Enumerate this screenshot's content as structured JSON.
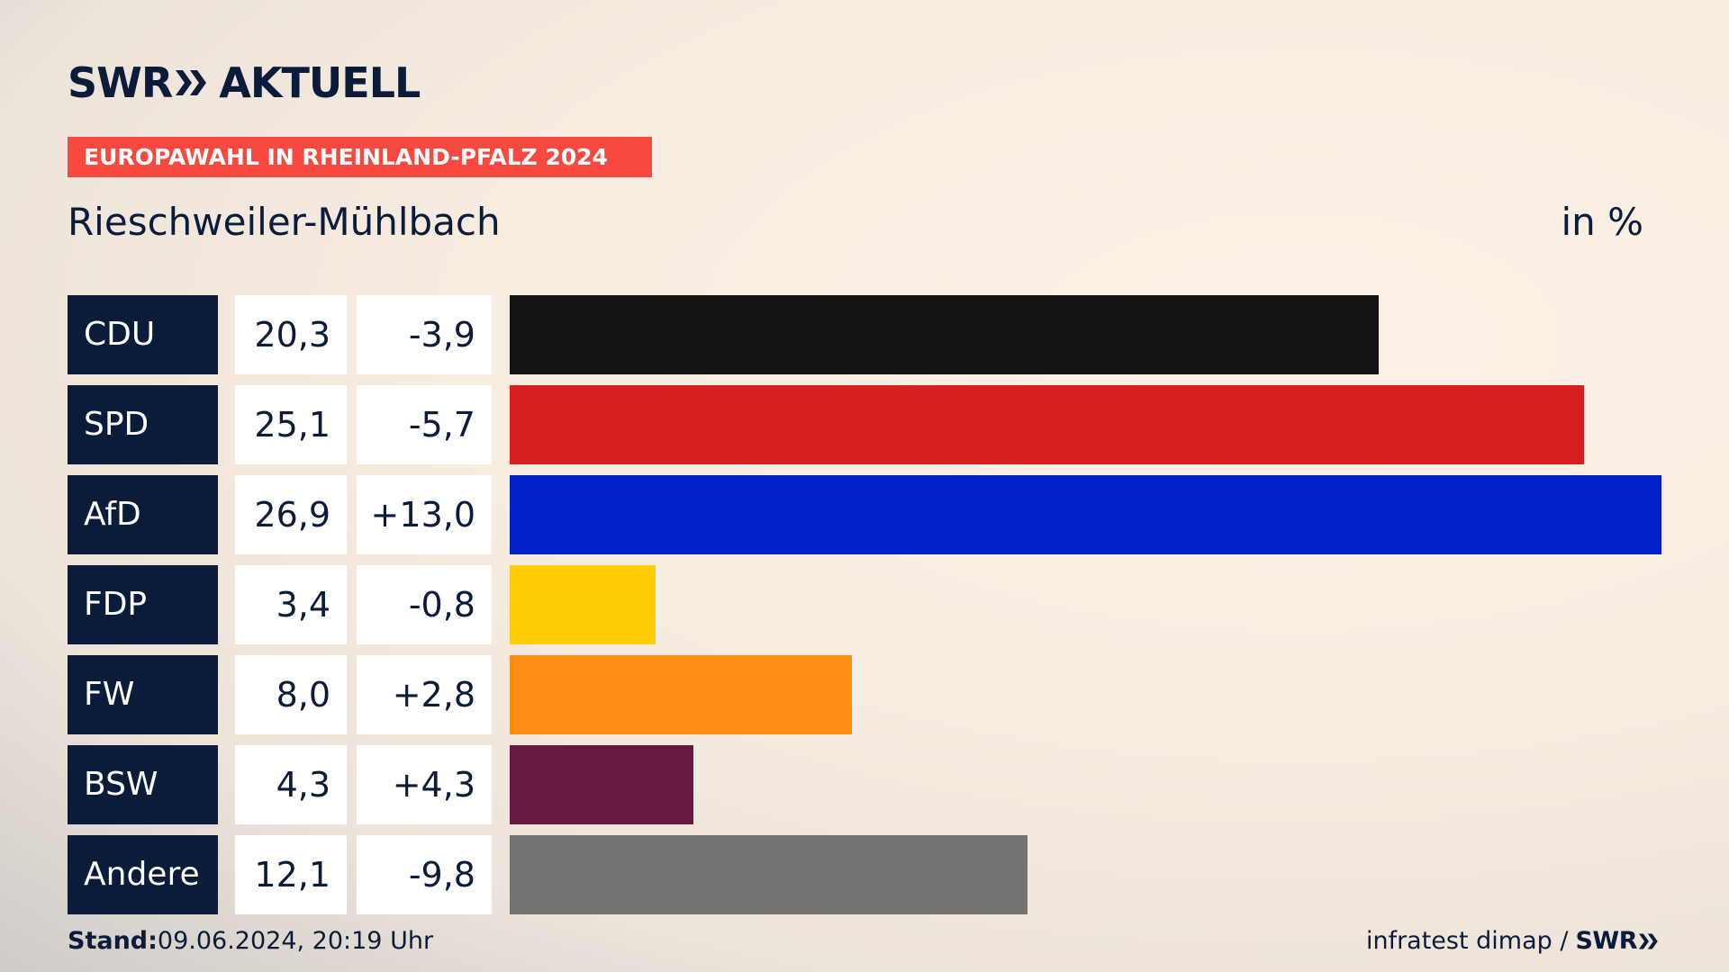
{
  "brand": {
    "name": "SWR",
    "product": "AKTUELL"
  },
  "tag": "EUROPAWAHL IN RHEINLAND-PFALZ 2024",
  "location": "Rieschweiler-Mühlbach",
  "unit": "in %",
  "colors": {
    "CDU": "#141414",
    "SPD": "#d71f1f",
    "AfD": "#0021c8",
    "FDP": "#ffcc08",
    "FW": "#ff8c17",
    "BSW": "#661a3f",
    "Andere": "#737373"
  },
  "chart_data": {
    "type": "bar",
    "orientation": "horizontal",
    "categories": [
      "CDU",
      "SPD",
      "AfD",
      "FDP",
      "FW",
      "BSW",
      "Andere"
    ],
    "values": [
      20.3,
      25.1,
      26.9,
      3.4,
      8.0,
      4.3,
      12.1
    ],
    "value_labels": [
      "20,3",
      "25,1",
      "26,9",
      "3,4",
      "8,0",
      "4,3",
      "12,1"
    ],
    "change_labels": [
      "-3,9",
      "-5,7",
      "+13,0",
      "-0,8",
      "+2,8",
      "+4,3",
      "-9,8"
    ],
    "changes": [
      -3.9,
      -5.7,
      13.0,
      -0.8,
      2.8,
      4.3,
      -9.8
    ],
    "xlim": [
      0,
      26.9
    ],
    "grid": false,
    "legend": "none"
  },
  "footer": {
    "stand_label": "Stand:",
    "stand_value": "09.06.2024, 20:19 Uhr",
    "source": "infratest dimap /",
    "source_brand": "SWR"
  }
}
